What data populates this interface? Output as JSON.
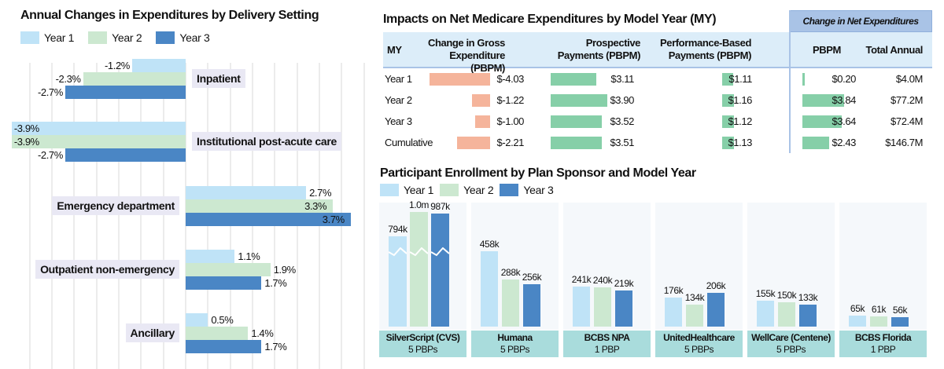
{
  "colors": {
    "year1": "#bfe3f7",
    "year2": "#cce8d0",
    "year3": "#4a86c5",
    "gross": "#f5b49b",
    "positive": "#86cfa8",
    "header": "#dcedf9",
    "header_dark": "#a9c3e6",
    "label_bg": "#a9dcdc"
  },
  "chart_data": [
    {
      "type": "bar",
      "orientation": "horizontal",
      "title": "Annual Changes in Expenditures by Delivery Setting",
      "legend": [
        "Year 1",
        "Year 2",
        "Year 3"
      ],
      "legend_position": "top-left",
      "grid": true,
      "unit": "%",
      "categories": [
        "Inpatient",
        "Institutional post-acute care",
        "Emergency department",
        "Outpatient non-emergency",
        "Ancillary"
      ],
      "series": [
        {
          "name": "Year 1",
          "values": [
            -1.2,
            -3.9,
            2.7,
            1.1,
            0.5
          ]
        },
        {
          "name": "Year 2",
          "values": [
            -2.3,
            -3.9,
            3.3,
            1.9,
            1.4
          ]
        },
        {
          "name": "Year 3",
          "values": [
            -2.7,
            -2.7,
            3.7,
            1.7,
            1.7
          ]
        }
      ]
    },
    {
      "type": "table",
      "title": "Impacts on Net Medicare Expenditures by Model Year (MY)",
      "group_header": "Change in Net Expenditures",
      "columns": [
        "MY",
        "Change in Gross Expenditure (PBPM)",
        "Prospective Payments (PBPM)",
        "Performance-Based Payments (PBPM)",
        "PBPM",
        "Total Annual"
      ],
      "rows": [
        {
          "my": "Year 1",
          "gross": -4.03,
          "gross_label": "$-4.03",
          "prosp": 3.11,
          "prosp_label": "$3.11",
          "perf": 1.11,
          "perf_label": "$1.11",
          "net": 0.2,
          "net_label": "$0.20",
          "total": "$4.0M"
        },
        {
          "my": "Year 2",
          "gross": -1.22,
          "gross_label": "$-1.22",
          "prosp": 3.9,
          "prosp_label": "$3.90",
          "perf": 1.16,
          "perf_label": "$1.16",
          "net": 3.84,
          "net_label": "$3.84",
          "total": "$77.2M"
        },
        {
          "my": "Year 3",
          "gross": -1.0,
          "gross_label": "$-1.00",
          "prosp": 3.52,
          "prosp_label": "$3.52",
          "perf": 1.12,
          "perf_label": "$1.12",
          "net": 3.64,
          "net_label": "$3.64",
          "total": "$72.4M"
        },
        {
          "my": "Cumulative",
          "gross": -2.21,
          "gross_label": "$-2.21",
          "prosp": 3.51,
          "prosp_label": "$3.51",
          "perf": 1.13,
          "perf_label": "$1.13",
          "net": 2.43,
          "net_label": "$2.43",
          "total": "$146.7M"
        }
      ]
    },
    {
      "type": "bar",
      "title": "Participant Enrollment by Plan Sponsor and Model Year",
      "legend": [
        "Year 1",
        "Year 2",
        "Year 3"
      ],
      "legend_position": "top-left",
      "axis_break_on": "SilverScript (CVS)",
      "groups": [
        {
          "name": "SilverScript (CVS)",
          "sub": "5 PBPs",
          "values": [
            794000,
            1000000,
            987000
          ],
          "labels": [
            "794k",
            "1.0m",
            "987k"
          ]
        },
        {
          "name": "Humana",
          "sub": "5 PBPs",
          "values": [
            458000,
            288000,
            256000
          ],
          "labels": [
            "458k",
            "288k",
            "256k"
          ]
        },
        {
          "name": "BCBS NPA",
          "sub": "1 PBP",
          "values": [
            241000,
            240000,
            219000
          ],
          "labels": [
            "241k",
            "240k",
            "219k"
          ]
        },
        {
          "name": "UnitedHealthcare",
          "sub": "5 PBPs",
          "values": [
            176000,
            134000,
            206000
          ],
          "labels": [
            "176k",
            "134k",
            "206k"
          ]
        },
        {
          "name": "WellCare (Centene)",
          "sub": "5 PBPs",
          "values": [
            155000,
            150000,
            133000
          ],
          "labels": [
            "155k",
            "150k",
            "133k"
          ]
        },
        {
          "name": "BCBS Florida",
          "sub": "1 PBP",
          "values": [
            65000,
            61000,
            56000
          ],
          "labels": [
            "65k",
            "61k",
            "56k"
          ]
        }
      ]
    }
  ]
}
